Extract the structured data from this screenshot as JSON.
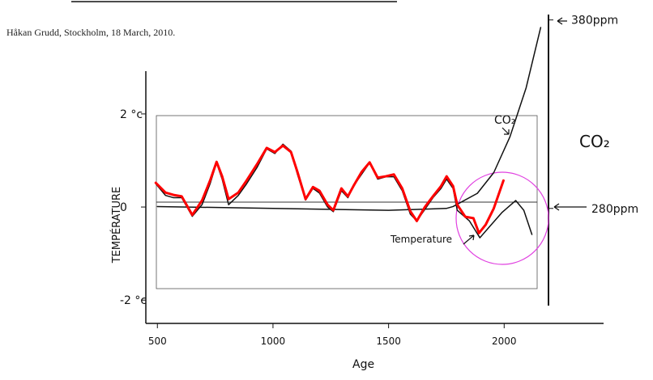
{
  "header": {
    "text": "Håkan Grudd, Stockholm, 18 March, 2010."
  },
  "chart_data": {
    "type": "line",
    "xlabel": "Age",
    "ylabel": "TEMPÉRATURE",
    "xlim": [
      450,
      2430
    ],
    "ylim": [
      -2.5,
      4.1
    ],
    "y2lim": [
      219,
      382
    ],
    "xticks": [
      500,
      1000,
      1500,
      2000
    ],
    "yticks": [
      {
        "value": 2,
        "label": "2 °c"
      },
      0,
      {
        "value": -2,
        "label": "-2 °c"
      }
    ],
    "y2ticks": [
      {
        "value": 280,
        "label": "280ppm"
      },
      {
        "value": 380,
        "label": "380ppm"
      }
    ],
    "annotations": [
      "CO₂"
    ],
    "series": [
      {
        "color": "#ff0000",
        "x": [
          493,
          535,
          570,
          605,
          651,
          693,
          728,
          756,
          780,
          808,
          850,
          886,
          931,
          973,
          1008,
          1043,
          1078,
          1106,
          1141,
          1173,
          1201,
          1236,
          1261,
          1296,
          1324,
          1348,
          1383,
          1418,
          1453,
          1488,
          1523,
          1559,
          1594,
          1622,
          1657,
          1692,
          1727,
          1751,
          1779,
          1797,
          1832,
          1867,
          1891,
          1920,
          1955,
          1997
        ],
        "values": [
          0.52,
          0.31,
          0.26,
          0.23,
          -0.17,
          0.14,
          0.57,
          0.97,
          0.66,
          0.17,
          0.31,
          0.57,
          0.92,
          1.27,
          1.18,
          1.32,
          1.18,
          0.75,
          0.17,
          0.43,
          0.35,
          0.05,
          -0.07,
          0.4,
          0.23,
          0.45,
          0.75,
          0.96,
          0.63,
          0.66,
          0.7,
          0.4,
          -0.09,
          -0.3,
          0.0,
          0.23,
          0.45,
          0.66,
          0.45,
          0.05,
          -0.21,
          -0.24,
          -0.56,
          -0.38,
          -0.03,
          0.57
        ]
      },
      {
        "name": "Temperature",
        "color": "#111111",
        "x": [
          493,
          535,
          570,
          605,
          651,
          693,
          728,
          756,
          780,
          808,
          850,
          886,
          931,
          973,
          1008,
          1043,
          1078,
          1106,
          1141,
          1173,
          1201,
          1236,
          1261,
          1296,
          1324,
          1348,
          1383,
          1418,
          1453,
          1488,
          1523,
          1559,
          1594,
          1622,
          1657,
          1692,
          1727,
          1751,
          1779,
          1797,
          1850,
          1895,
          1937,
          1990,
          2050,
          2085,
          2120
        ],
        "values": [
          0.5,
          0.25,
          0.2,
          0.2,
          -0.2,
          0.05,
          0.5,
          0.95,
          0.6,
          0.05,
          0.25,
          0.5,
          0.85,
          1.25,
          1.15,
          1.35,
          1.2,
          0.7,
          0.15,
          0.4,
          0.3,
          0.0,
          -0.1,
          0.35,
          0.2,
          0.45,
          0.7,
          0.95,
          0.6,
          0.65,
          0.65,
          0.35,
          -0.15,
          -0.3,
          -0.05,
          0.2,
          0.4,
          0.6,
          0.4,
          -0.07,
          -0.3,
          -0.66,
          -0.42,
          -0.12,
          0.14,
          -0.07,
          -0.59
        ]
      },
      {
        "name": "CO₂",
        "color": "#111111",
        "axis": "y2",
        "x": [
          500,
          1000,
          1500,
          1750,
          1779,
          1884,
          1955,
          2025,
          2095,
          2158
        ],
        "values": [
          281,
          280,
          279,
          280,
          281,
          288,
          299,
          318,
          344,
          376
        ]
      }
    ]
  }
}
